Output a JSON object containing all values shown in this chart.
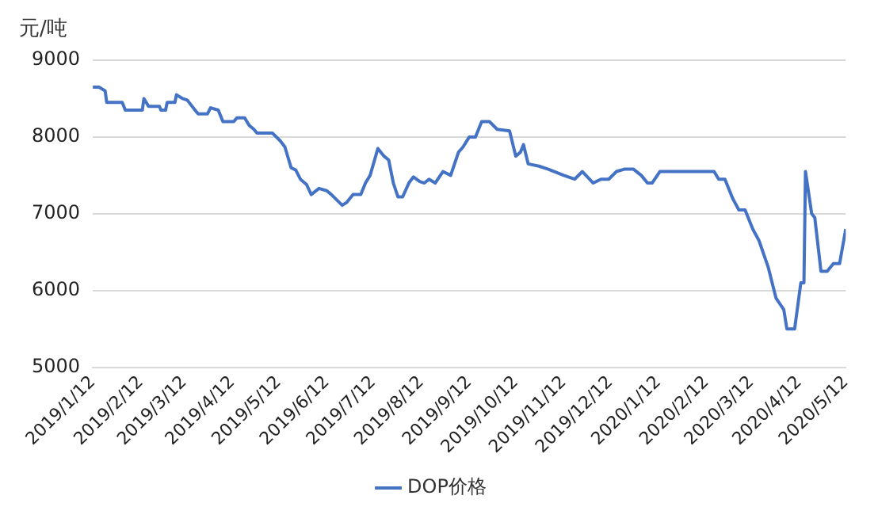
{
  "chart_data": {
    "type": "line",
    "ylabel": "元/吨",
    "legend": "bottom",
    "grid": "y",
    "marker": "none",
    "line_style": "solid",
    "ylim": [
      5000,
      9000
    ],
    "yticks": [
      5000,
      6000,
      7000,
      8000,
      9000
    ],
    "xlim": [
      "2019-01-12",
      "2020-05-12"
    ],
    "xticks": [
      {
        "value": "2019-01-12",
        "label": "2019/1/12"
      },
      {
        "value": "2019-02-12",
        "label": "2019/2/12"
      },
      {
        "value": "2019-03-12",
        "label": "2019/3/12"
      },
      {
        "value": "2019-04-12",
        "label": "2019/4/12"
      },
      {
        "value": "2019-05-12",
        "label": "2019/5/12"
      },
      {
        "value": "2019-06-12",
        "label": "2019/6/12"
      },
      {
        "value": "2019-07-12",
        "label": "2019/7/12"
      },
      {
        "value": "2019-08-12",
        "label": "2019/8/12"
      },
      {
        "value": "2019-09-12",
        "label": "2019/9/12"
      },
      {
        "value": "2019-10-12",
        "label": "2019/10/12"
      },
      {
        "value": "2019-11-12",
        "label": "2019/11/12"
      },
      {
        "value": "2019-12-12",
        "label": "2019/12/12"
      },
      {
        "value": "2020-01-12",
        "label": "2020/1/12"
      },
      {
        "value": "2020-02-12",
        "label": "2020/2/12"
      },
      {
        "value": "2020-03-12",
        "label": "2020/3/12"
      },
      {
        "value": "2020-04-12",
        "label": "2020/4/12"
      },
      {
        "value": "2020-05-12",
        "label": "2020/5/12"
      }
    ],
    "x": [
      "2019-01-12",
      "2019-01-16",
      "2019-01-20",
      "2019-01-21",
      "2019-01-31",
      "2019-02-02",
      "2019-02-13",
      "2019-02-14",
      "2019-02-17",
      "2019-02-24",
      "2019-02-25",
      "2019-02-28",
      "2019-03-01",
      "2019-03-06",
      "2019-03-07",
      "2019-03-11",
      "2019-03-14",
      "2019-03-19",
      "2019-03-21",
      "2019-03-27",
      "2019-03-29",
      "2019-04-03",
      "2019-04-06",
      "2019-04-13",
      "2019-04-15",
      "2019-04-20",
      "2019-04-23",
      "2019-04-26",
      "2019-04-28",
      "2019-05-08",
      "2019-05-13",
      "2019-05-16",
      "2019-05-20",
      "2019-05-23",
      "2019-05-26",
      "2019-05-30",
      "2019-06-02",
      "2019-06-07",
      "2019-06-12",
      "2019-06-15",
      "2019-06-19",
      "2019-06-22",
      "2019-06-25",
      "2019-06-29",
      "2019-07-04",
      "2019-07-07",
      "2019-07-10",
      "2019-07-15",
      "2019-07-19",
      "2019-07-22",
      "2019-07-25",
      "2019-07-28",
      "2019-07-31",
      "2019-08-04",
      "2019-08-07",
      "2019-08-11",
      "2019-08-14",
      "2019-08-17",
      "2019-08-21",
      "2019-08-26",
      "2019-08-31",
      "2019-09-05",
      "2019-09-08",
      "2019-09-12",
      "2019-09-16",
      "2019-09-20",
      "2019-09-25",
      "2019-09-30",
      "2019-10-08",
      "2019-10-12",
      "2019-10-15",
      "2019-10-17",
      "2019-10-20",
      "2019-10-27",
      "2019-11-02",
      "2019-11-12",
      "2019-11-19",
      "2019-11-24",
      "2019-12-01",
      "2019-12-06",
      "2019-12-11",
      "2019-12-16",
      "2019-12-21",
      "2019-12-27",
      "2020-01-01",
      "2020-01-05",
      "2020-01-08",
      "2020-01-13",
      "2020-02-17",
      "2020-02-20",
      "2020-02-24",
      "2020-02-29",
      "2020-03-04",
      "2020-03-08",
      "2020-03-13",
      "2020-03-17",
      "2020-03-23",
      "2020-03-28",
      "2020-04-02",
      "2020-04-04",
      "2020-04-09",
      "2020-04-13",
      "2020-04-15",
      "2020-04-16",
      "2020-04-20",
      "2020-04-22",
      "2020-04-26",
      "2020-04-30",
      "2020-05-04",
      "2020-05-08",
      "2020-05-12"
    ],
    "series": [
      {
        "name": "DOP价格",
        "color": "#4472c4",
        "values": [
          8650,
          8650,
          8600,
          8450,
          8450,
          8350,
          8350,
          8500,
          8400,
          8400,
          8350,
          8350,
          8450,
          8450,
          8550,
          8500,
          8480,
          8350,
          8300,
          8300,
          8380,
          8350,
          8200,
          8200,
          8250,
          8250,
          8150,
          8100,
          8050,
          8050,
          7950,
          7870,
          7600,
          7570,
          7450,
          7380,
          7250,
          7330,
          7300,
          7250,
          7170,
          7110,
          7150,
          7250,
          7250,
          7400,
          7500,
          7850,
          7750,
          7700,
          7400,
          7220,
          7220,
          7400,
          7480,
          7420,
          7400,
          7450,
          7400,
          7550,
          7500,
          7800,
          7870,
          8000,
          8000,
          8200,
          8200,
          8100,
          8080,
          7750,
          7800,
          7900,
          7650,
          7620,
          7580,
          7500,
          7450,
          7550,
          7400,
          7450,
          7450,
          7550,
          7580,
          7580,
          7500,
          7400,
          7400,
          7550,
          7550,
          7450,
          7450,
          7200,
          7050,
          7050,
          6800,
          6650,
          6300,
          5900,
          5750,
          5500,
          5500,
          6100,
          6100,
          7550,
          7000,
          6950,
          6250,
          6250,
          6350,
          6350,
          6800
        ]
      }
    ]
  }
}
